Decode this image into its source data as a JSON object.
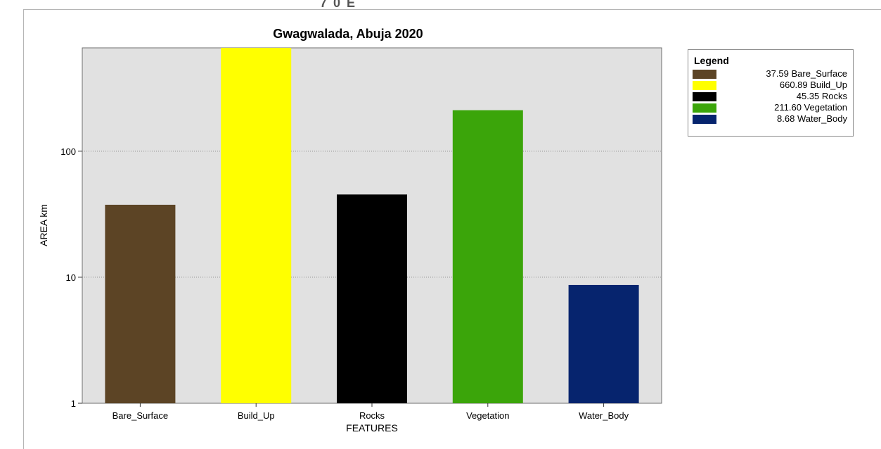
{
  "top_fragment": "7 0 E",
  "chart_data": {
    "type": "bar",
    "title": "Gwagwalada, Abuja 2020",
    "xlabel": "FEATURES",
    "ylabel": "AREA km",
    "yscale": "log",
    "ylim": [
      1,
      660.89
    ],
    "yticks": [
      1,
      10,
      100
    ],
    "ytick_labels": [
      "1",
      "10",
      "100"
    ],
    "grid": "horizontal dotted at 10 and 100",
    "categories": [
      "Bare_Surface",
      "Build_Up",
      "Rocks",
      "Vegetation",
      "Water_Body"
    ],
    "values": [
      37.59,
      660.89,
      45.35,
      211.6,
      8.68
    ],
    "colors": [
      "#5c4425",
      "#ffff00",
      "#000000",
      "#3ba50a",
      "#06246e"
    ],
    "plot_background": "#e1e1e1",
    "legend": {
      "title": "Legend",
      "placement": "right",
      "items": [
        {
          "label": "37.59 Bare_Surface",
          "color": "#5c4425"
        },
        {
          "label": "660.89 Build_Up",
          "color": "#ffff00"
        },
        {
          "label": "45.35 Rocks",
          "color": "#000000"
        },
        {
          "label": "211.60 Vegetation",
          "color": "#3ba50a"
        },
        {
          "label": "8.68 Water_Body",
          "color": "#06246e"
        }
      ]
    }
  }
}
